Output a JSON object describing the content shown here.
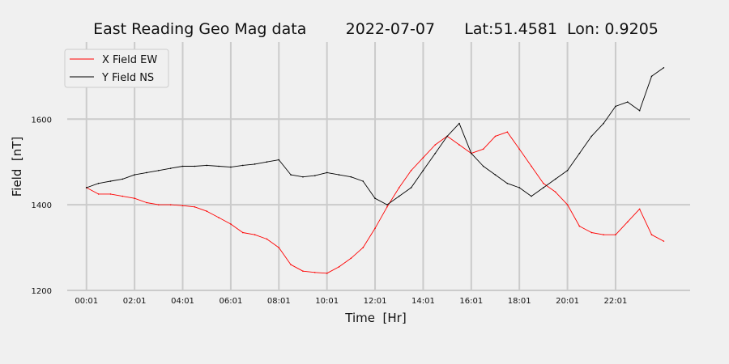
{
  "chart_data": {
    "type": "line",
    "title": "East Reading Geo Mag data        2022-07-07      Lat:51.4581  Lon: 0.9205",
    "xlabel": "Time  [Hr]",
    "ylabel": "Field  [nT]",
    "x_range_hours": [
      -0.8,
      25.1
    ],
    "ylim": [
      1200,
      1780
    ],
    "grid": true,
    "legend_position": "top-left",
    "x_ticks": [
      {
        "hour": 0,
        "label": "00:01"
      },
      {
        "hour": 2,
        "label": "02:01"
      },
      {
        "hour": 4,
        "label": "04:01"
      },
      {
        "hour": 6,
        "label": "06:01"
      },
      {
        "hour": 8,
        "label": "08:01"
      },
      {
        "hour": 10,
        "label": "10:01"
      },
      {
        "hour": 12,
        "label": "12:01"
      },
      {
        "hour": 14,
        "label": "14:01"
      },
      {
        "hour": 16,
        "label": "16:01"
      },
      {
        "hour": 18,
        "label": "18:01"
      },
      {
        "hour": 20,
        "label": "20:01"
      },
      {
        "hour": 22,
        "label": "22:01"
      }
    ],
    "y_ticks": [
      {
        "value": 1200,
        "label": "1200"
      },
      {
        "value": 1400,
        "label": "1400"
      },
      {
        "value": 1600,
        "label": "1600"
      }
    ],
    "series": [
      {
        "name": "X Field EW",
        "color": "#ff0000",
        "x": [
          0.0,
          0.5,
          1.0,
          1.5,
          2.0,
          2.5,
          3.0,
          3.5,
          4.0,
          4.5,
          5.0,
          5.5,
          6.0,
          6.5,
          7.0,
          7.5,
          8.0,
          8.5,
          9.0,
          9.5,
          10.0,
          10.5,
          11.0,
          11.5,
          12.0,
          12.5,
          13.0,
          13.5,
          14.0,
          14.5,
          15.0,
          15.5,
          16.0,
          16.5,
          17.0,
          17.5,
          18.0,
          18.5,
          19.0,
          19.5,
          20.0,
          20.5,
          21.0,
          21.5,
          22.0,
          22.5,
          23.0,
          23.5,
          24.0
        ],
        "values": [
          1440,
          1425,
          1425,
          1420,
          1415,
          1405,
          1400,
          1400,
          1398,
          1395,
          1385,
          1370,
          1355,
          1335,
          1330,
          1320,
          1300,
          1260,
          1245,
          1242,
          1240,
          1255,
          1275,
          1300,
          1345,
          1395,
          1440,
          1480,
          1510,
          1540,
          1560,
          1540,
          1520,
          1530,
          1560,
          1570,
          1530,
          1490,
          1450,
          1430,
          1400,
          1350,
          1335,
          1330,
          1330,
          1360,
          1390,
          1330,
          1315
        ]
      },
      {
        "name": "Y Field NS",
        "color": "#000000",
        "x": [
          0.0,
          0.5,
          1.0,
          1.5,
          2.0,
          2.5,
          3.0,
          3.5,
          4.0,
          4.5,
          5.0,
          5.5,
          6.0,
          6.5,
          7.0,
          7.5,
          8.0,
          8.5,
          9.0,
          9.5,
          10.0,
          10.5,
          11.0,
          11.5,
          12.0,
          12.5,
          13.0,
          13.5,
          14.0,
          14.5,
          15.0,
          15.5,
          16.0,
          16.5,
          17.0,
          17.5,
          18.0,
          18.5,
          19.0,
          19.5,
          20.0,
          20.5,
          21.0,
          21.5,
          22.0,
          22.5,
          23.0,
          23.5,
          24.0
        ],
        "values": [
          1440,
          1450,
          1455,
          1460,
          1470,
          1475,
          1480,
          1485,
          1490,
          1490,
          1492,
          1490,
          1488,
          1492,
          1495,
          1500,
          1505,
          1470,
          1465,
          1468,
          1475,
          1470,
          1465,
          1455,
          1415,
          1400,
          1420,
          1440,
          1480,
          1520,
          1560,
          1590,
          1520,
          1490,
          1470,
          1450,
          1440,
          1420,
          1440,
          1460,
          1480,
          1520,
          1560,
          1590,
          1630,
          1640,
          1620,
          1700,
          1720
        ]
      }
    ]
  }
}
